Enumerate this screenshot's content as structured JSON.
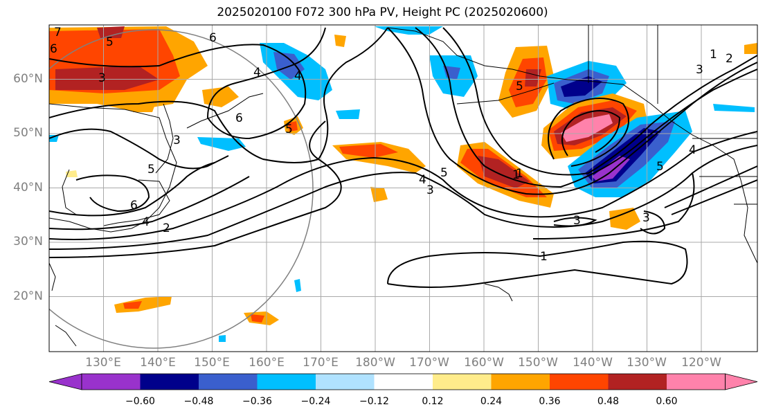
{
  "title": "2025020100 F072 300 hPa PV, Height PC (2025020600)",
  "lat_labels": [
    "60°N",
    "50°N",
    "40°N",
    "30°N",
    "20°N"
  ],
  "lon_labels": [
    "130°E",
    "140°E",
    "150°E",
    "160°E",
    "170°E",
    "180°W",
    "170°W",
    "160°W",
    "150°W",
    "140°W",
    "130°W",
    "120°W"
  ],
  "colorbar": {
    "colors": [
      "#9932cc",
      "#00008b",
      "#3a5fcd",
      "#00bfff",
      "#b0e2ff",
      "#ffffff",
      "#ffec8b",
      "#ffa500",
      "#ff4500",
      "#b22222",
      "#ff82ab"
    ],
    "tick_labels": [
      "−0.60",
      "−0.48",
      "−0.36",
      "−0.24",
      "−0.12",
      "0.12",
      "0.24",
      "0.36",
      "0.48",
      "0.60"
    ]
  },
  "contour_labels": [
    "7",
    "6",
    "5",
    "3",
    "6",
    "4",
    "3",
    "5",
    "1",
    "4",
    "3",
    "5",
    "1",
    "6",
    "5",
    "5",
    "4",
    "6",
    "4",
    "2",
    "1",
    "3",
    "3",
    "3",
    "2",
    "4",
    "5",
    "1"
  ]
}
